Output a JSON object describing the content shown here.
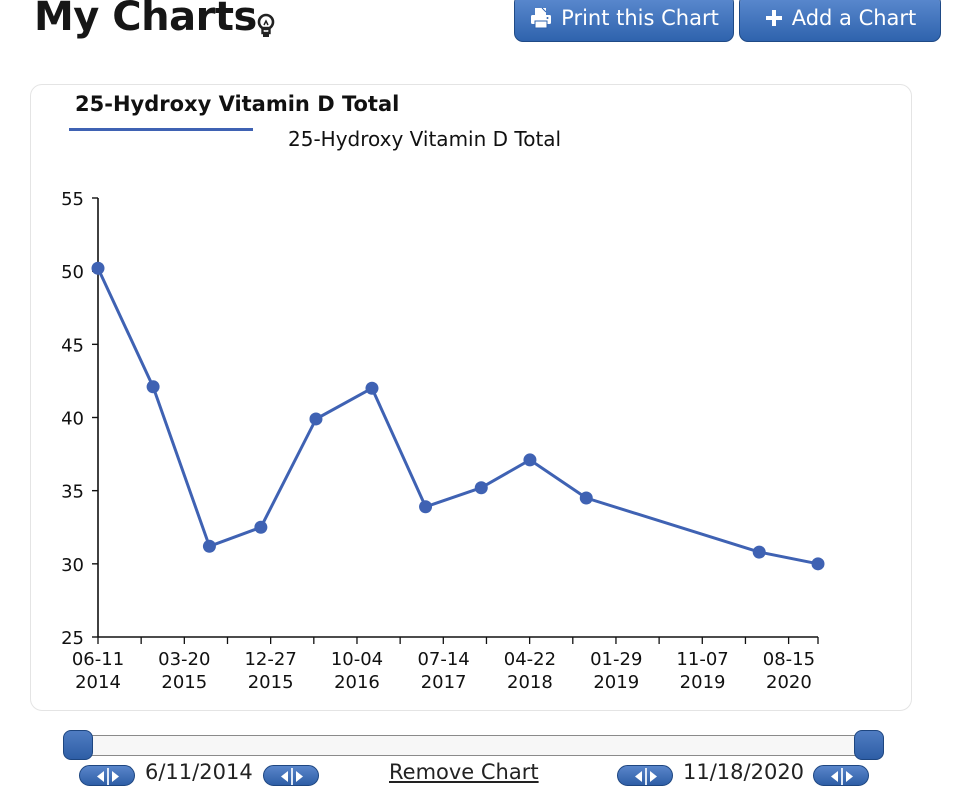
{
  "header": {
    "title": "My Charts",
    "print_label": "Print this Chart",
    "add_label": "Add a Chart"
  },
  "card": {
    "title": "25-Hydroxy Vitamin D Total"
  },
  "chart_data": {
    "type": "line",
    "title": "25-Hydroxy Vitamin D Total",
    "xlabel": "",
    "ylabel": "",
    "ylim": [
      25,
      55
    ],
    "y_ticks": [
      25,
      30,
      35,
      40,
      45,
      50,
      55
    ],
    "x_range": [
      "2014-06-11",
      "2020-11-18"
    ],
    "x_tick_labels": [
      {
        "date": "2014-06-11",
        "line1": "06-11",
        "line2": "2014"
      },
      {
        "date": "2015-03-20",
        "line1": "03-20",
        "line2": "2015"
      },
      {
        "date": "2015-12-27",
        "line1": "12-27",
        "line2": "2015"
      },
      {
        "date": "2016-10-04",
        "line1": "10-04",
        "line2": "2016"
      },
      {
        "date": "2017-07-14",
        "line1": "07-14",
        "line2": "2017"
      },
      {
        "date": "2018-04-22",
        "line1": "04-22",
        "line2": "2018"
      },
      {
        "date": "2019-01-29",
        "line1": "01-29",
        "line2": "2019"
      },
      {
        "date": "2019-11-07",
        "line1": "11-07",
        "line2": "2019"
      },
      {
        "date": "2020-08-15",
        "line1": "08-15",
        "line2": "2020"
      }
    ],
    "series": [
      {
        "name": "25-Hydroxy Vitamin D Total",
        "color": "#3f62b3",
        "points": [
          {
            "x": "2014-06-11",
            "y": 50.2
          },
          {
            "x": "2014-12-08",
            "y": 42.1
          },
          {
            "x": "2015-06-10",
            "y": 31.2
          },
          {
            "x": "2015-11-25",
            "y": 32.5
          },
          {
            "x": "2016-05-23",
            "y": 39.9
          },
          {
            "x": "2016-11-22",
            "y": 42.0
          },
          {
            "x": "2017-05-16",
            "y": 33.9
          },
          {
            "x": "2017-11-14",
            "y": 35.2
          },
          {
            "x": "2018-04-22",
            "y": 37.1
          },
          {
            "x": "2018-10-23",
            "y": 34.5
          },
          {
            "x": "2020-05-10",
            "y": 30.8
          },
          {
            "x": "2020-11-18",
            "y": 30.0
          }
        ]
      }
    ],
    "grid": false,
    "legend": "top-left"
  },
  "range": {
    "start": "6/11/2014",
    "end": "11/18/2020",
    "remove_label": "Remove Chart"
  }
}
